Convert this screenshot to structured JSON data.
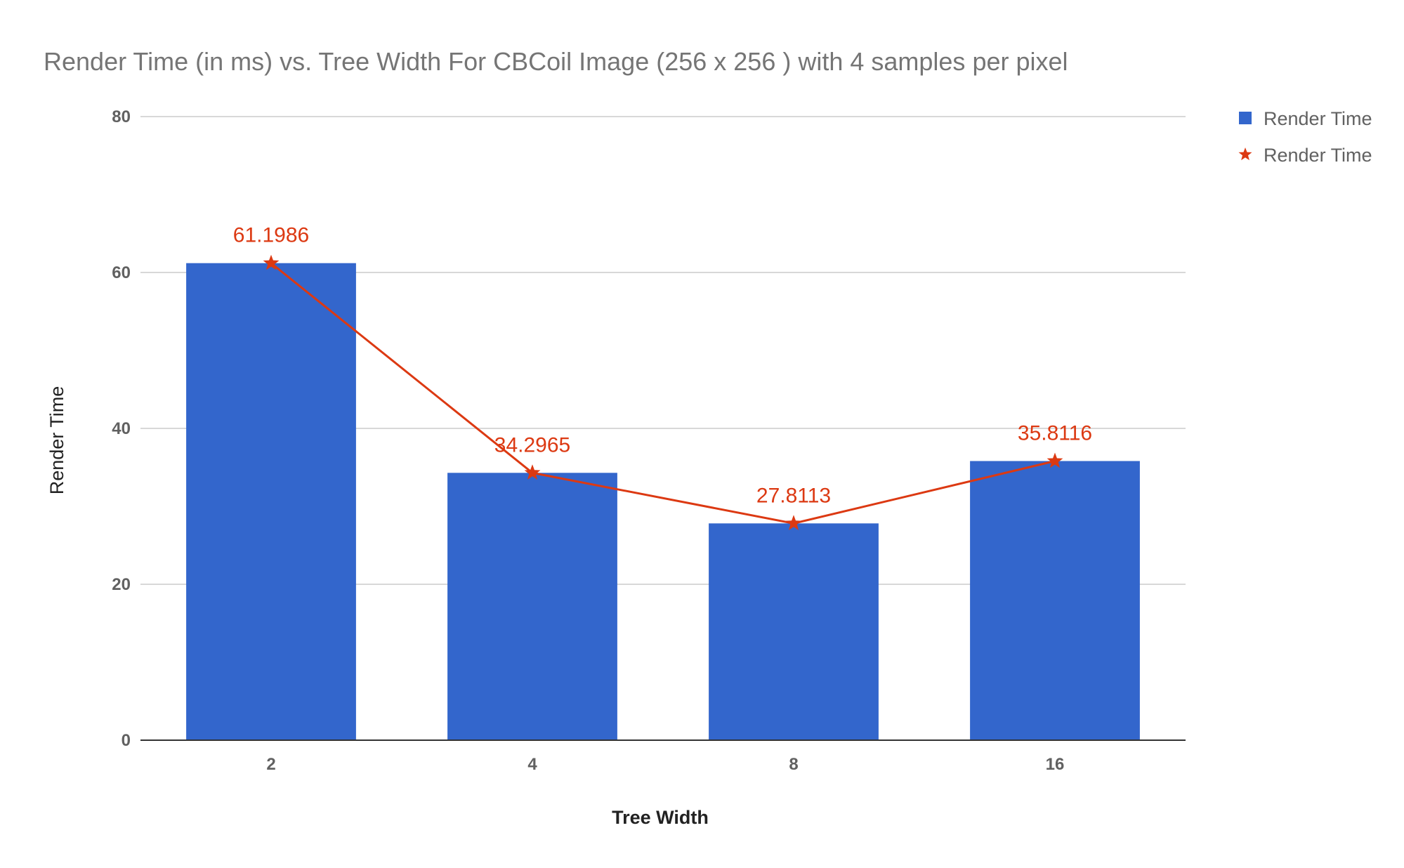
{
  "chart_data": {
    "type": "bar",
    "title": "Render Time (in ms) vs. Tree Width For CBCoil Image (256 x 256 ) with 4 samples per pixel",
    "xlabel": "Tree Width",
    "ylabel": "Render Time",
    "categories": [
      "2",
      "4",
      "8",
      "16"
    ],
    "ylim": [
      0,
      80
    ],
    "yticks": [
      "0",
      "20",
      "40",
      "60",
      "80"
    ],
    "grid": true,
    "legend_position": "right",
    "series": [
      {
        "name": "Render Time",
        "type": "bar",
        "color": "#3366cc",
        "values": [
          61.1986,
          34.2965,
          27.8113,
          35.8116
        ]
      },
      {
        "name": "Render Time",
        "type": "line",
        "marker": "star",
        "color": "#dc3912",
        "values": [
          61.1986,
          34.2965,
          27.8113,
          35.8116
        ],
        "data_labels": [
          "61.1986",
          "34.2965",
          "27.8113",
          "35.8116"
        ]
      }
    ]
  }
}
